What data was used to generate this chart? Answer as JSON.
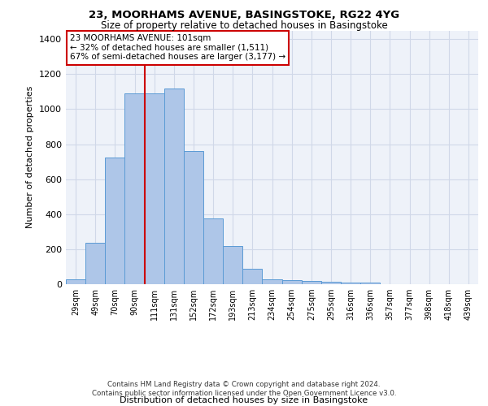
{
  "title1": "23, MOORHAMS AVENUE, BASINGSTOKE, RG22 4YG",
  "title2": "Size of property relative to detached houses in Basingstoke",
  "xlabel": "Distribution of detached houses by size in Basingstoke",
  "ylabel": "Number of detached properties",
  "footer1": "Contains HM Land Registry data © Crown copyright and database right 2024.",
  "footer2": "Contains public sector information licensed under the Open Government Licence v3.0.",
  "annotation_line1": "23 MOORHAMS AVENUE: 101sqm",
  "annotation_line2": "← 32% of detached houses are smaller (1,511)",
  "annotation_line3": "67% of semi-detached houses are larger (3,177) →",
  "categories": [
    "29sqm",
    "49sqm",
    "70sqm",
    "90sqm",
    "111sqm",
    "131sqm",
    "152sqm",
    "172sqm",
    "193sqm",
    "213sqm",
    "234sqm",
    "254sqm",
    "275sqm",
    "295sqm",
    "316sqm",
    "336sqm",
    "357sqm",
    "377sqm",
    "398sqm",
    "418sqm",
    "439sqm"
  ],
  "values": [
    28,
    235,
    725,
    1090,
    1090,
    1120,
    760,
    378,
    220,
    90,
    30,
    25,
    20,
    15,
    10,
    8,
    0,
    0,
    0,
    0,
    0
  ],
  "bar_color": "#aec6e8",
  "bar_edge_color": "#5b9bd5",
  "vline_color": "#cc0000",
  "annotation_box_color": "#cc0000",
  "grid_color": "#d0d8e8",
  "bg_color": "#eef2f9",
  "ylim": [
    0,
    1450
  ],
  "yticks": [
    0,
    200,
    400,
    600,
    800,
    1000,
    1200,
    1400
  ]
}
